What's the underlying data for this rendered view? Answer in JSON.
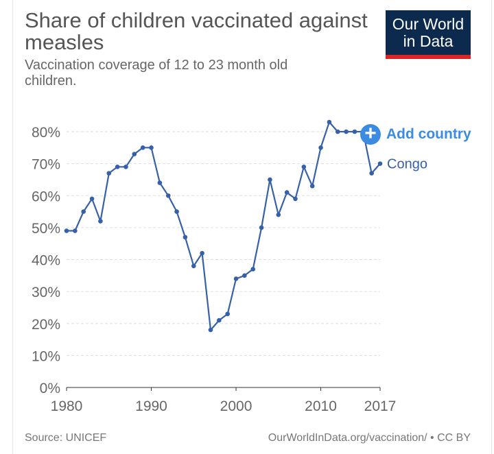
{
  "header": {
    "title": "Share of children vaccinated against measles",
    "subtitle": "Vaccination coverage of 12 to 23 month old children."
  },
  "logo": {
    "line1": "Our World",
    "line2": "in Data"
  },
  "controls": {
    "add_country_label": "Add country",
    "add_icon": "plus-icon"
  },
  "footer": {
    "source": "Source: UNICEF",
    "link": "OurWorldInData.org/vaccination/ • CC BY"
  },
  "colors": {
    "series": "#3660a8",
    "accent": "#3b8be0",
    "logo_bg": "#0c2a4d",
    "logo_bar": "#d8262b",
    "grid": "#dddddd"
  },
  "chart_data": {
    "type": "line",
    "title": "Share of children vaccinated against measles",
    "subtitle": "Vaccination coverage of 12 to 23 month old children.",
    "xlim": [
      1980,
      2017
    ],
    "ylim": [
      0,
      80
    ],
    "x_ticks": [
      1980,
      1990,
      2000,
      2010,
      2017
    ],
    "y_ticks": [
      0,
      10,
      20,
      30,
      40,
      50,
      60,
      70,
      80
    ],
    "y_tick_labels": [
      "0%",
      "10%",
      "20%",
      "30%",
      "40%",
      "50%",
      "60%",
      "70%",
      "80%"
    ],
    "grid": "horizontal dashed",
    "series": [
      {
        "name": "Congo",
        "x": [
          1980,
          1981,
          1982,
          1983,
          1984,
          1985,
          1986,
          1987,
          1988,
          1989,
          1990,
          1991,
          1992,
          1993,
          1994,
          1995,
          1996,
          1997,
          1998,
          1999,
          2000,
          2001,
          2002,
          2003,
          2004,
          2005,
          2006,
          2007,
          2008,
          2009,
          2010,
          2011,
          2012,
          2013,
          2014,
          2015,
          2016,
          2017
        ],
        "values": [
          49,
          49,
          55,
          59,
          52,
          67,
          69,
          69,
          73,
          75,
          75,
          64,
          60,
          55,
          47,
          38,
          42,
          18,
          21,
          23,
          34,
          35,
          37,
          50,
          65,
          54,
          61,
          59,
          69,
          63,
          75,
          83,
          80,
          80,
          80,
          80,
          67,
          70
        ]
      }
    ]
  }
}
